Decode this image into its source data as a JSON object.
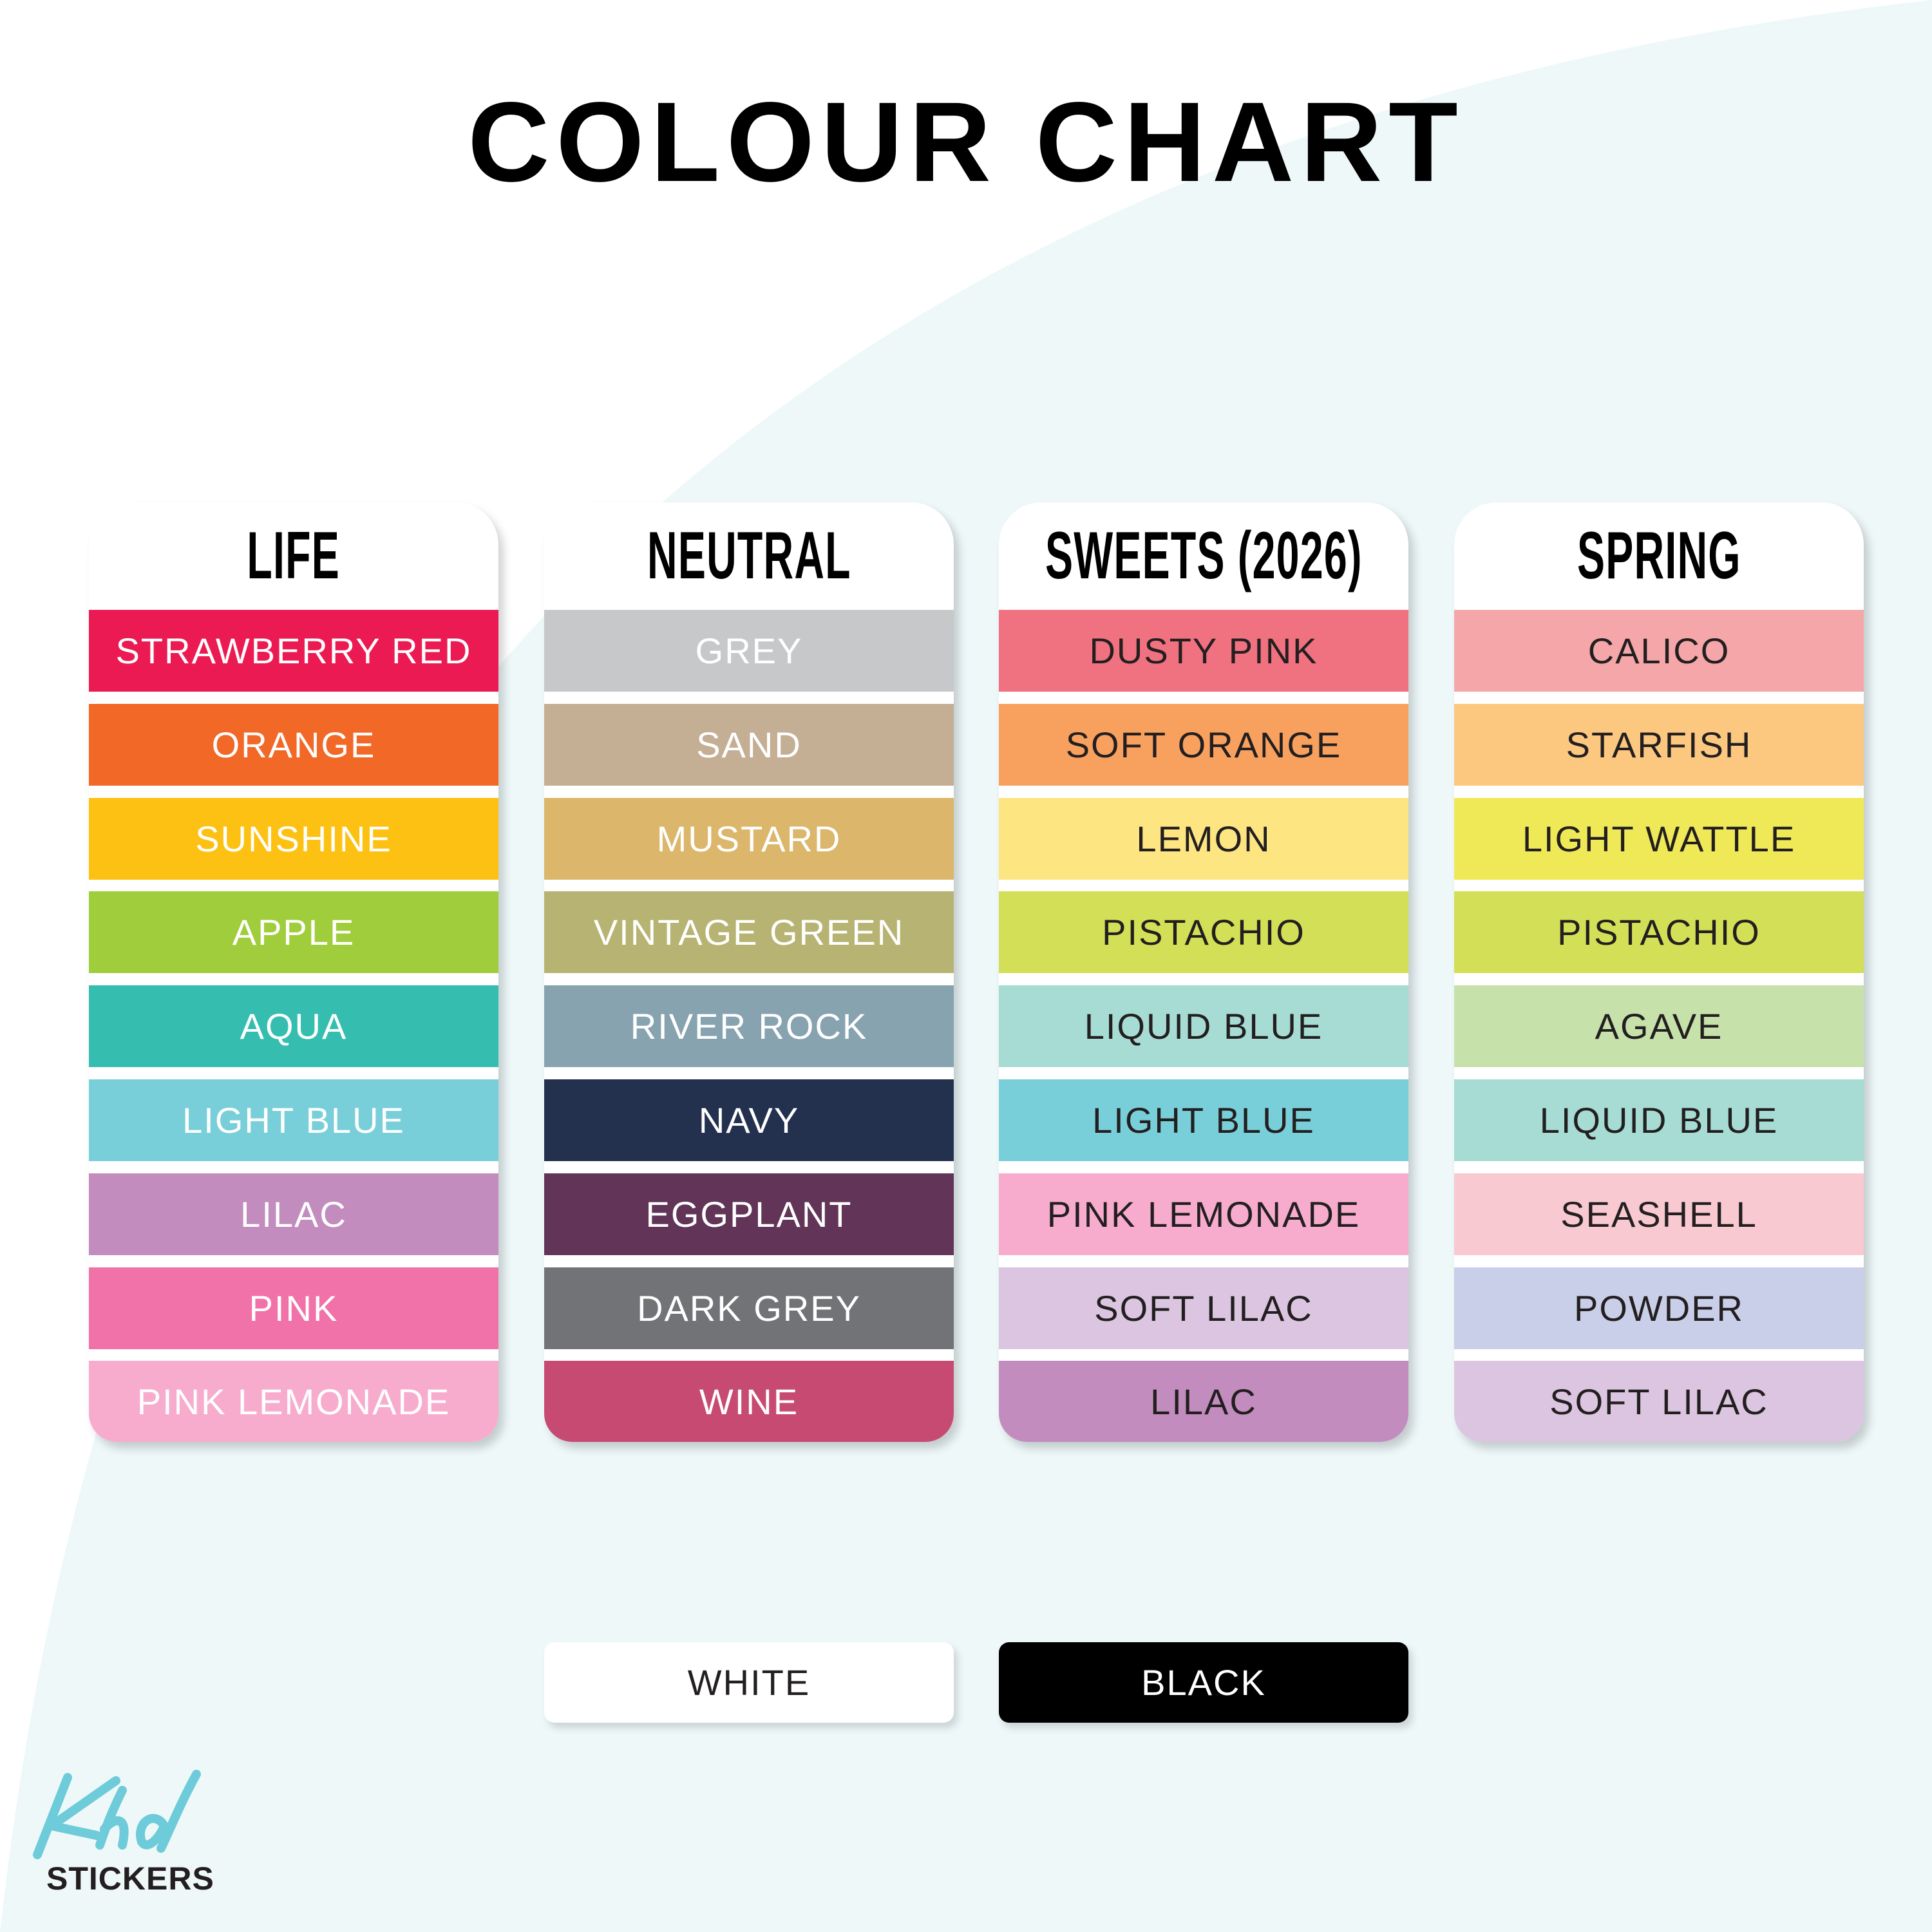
{
  "title": "COLOUR CHART",
  "colors": {
    "background": "#ffffff",
    "background_curve": "#eef8f9",
    "logo_accent": "#6ecbd9"
  },
  "columns": [
    {
      "name": "LIFE",
      "items": [
        {
          "label": "STRAWBERRY RED",
          "color": "#ec1a52",
          "text": "#ffffff"
        },
        {
          "label": "ORANGE",
          "color": "#f26826",
          "text": "#ffffff"
        },
        {
          "label": "SUNSHINE",
          "color": "#fdc113",
          "text": "#ffffff"
        },
        {
          "label": "APPLE",
          "color": "#a0cd3c",
          "text": "#ffffff"
        },
        {
          "label": "AQUA",
          "color": "#35bdb0",
          "text": "#ffffff"
        },
        {
          "label": "LIGHT BLUE",
          "color": "#79cfd9",
          "text": "#ffffff"
        },
        {
          "label": "LILAC",
          "color": "#c38cbf",
          "text": "#ffffff"
        },
        {
          "label": "PINK",
          "color": "#f172a9",
          "text": "#ffffff"
        },
        {
          "label": "PINK LEMONADE",
          "color": "#f7acce",
          "text": "#ffffff"
        }
      ]
    },
    {
      "name": "NEUTRAL",
      "items": [
        {
          "label": "GREY",
          "color": "#c7c8ca",
          "text": "#ffffff"
        },
        {
          "label": "SAND",
          "color": "#c4ae94",
          "text": "#ffffff"
        },
        {
          "label": "MUSTARD",
          "color": "#dbb66b",
          "text": "#ffffff"
        },
        {
          "label": "VINTAGE GREEN",
          "color": "#b6b373",
          "text": "#ffffff"
        },
        {
          "label": "RIVER ROCK",
          "color": "#87a3b0",
          "text": "#ffffff"
        },
        {
          "label": "NAVY",
          "color": "#23314e",
          "text": "#ffffff"
        },
        {
          "label": "EGGPLANT",
          "color": "#613458",
          "text": "#ffffff"
        },
        {
          "label": "DARK GREY",
          "color": "#727376",
          "text": "#ffffff"
        },
        {
          "label": "WINE",
          "color": "#c74a72",
          "text": "#ffffff"
        }
      ]
    },
    {
      "name": "SWEETS (2026)",
      "items": [
        {
          "label": "DUSTY PINK",
          "color": "#f0717f",
          "text": "#231f20"
        },
        {
          "label": "SOFT ORANGE",
          "color": "#f8a15f",
          "text": "#231f20"
        },
        {
          "label": "LEMON",
          "color": "#fde581",
          "text": "#231f20"
        },
        {
          "label": "PISTACHIO",
          "color": "#d3df56",
          "text": "#231f20"
        },
        {
          "label": "LIQUID BLUE",
          "color": "#a6dcd4",
          "text": "#231f20"
        },
        {
          "label": "LIGHT BLUE",
          "color": "#79cfd9",
          "text": "#231f20"
        },
        {
          "label": "PINK LEMONADE",
          "color": "#f7acce",
          "text": "#231f20"
        },
        {
          "label": "SOFT LILAC",
          "color": "#dbc5e0",
          "text": "#231f20"
        },
        {
          "label": "LILAC",
          "color": "#c38cbf",
          "text": "#231f20"
        }
      ]
    },
    {
      "name": "SPRING",
      "items": [
        {
          "label": "CALICO",
          "color": "#f5a6a8",
          "text": "#231f20"
        },
        {
          "label": "STARFISH",
          "color": "#fcc880",
          "text": "#231f20"
        },
        {
          "label": "LIGHT WATTLE",
          "color": "#f0e957",
          "text": "#231f20"
        },
        {
          "label": "PISTACHIO",
          "color": "#d3df56",
          "text": "#231f20"
        },
        {
          "label": "AGAVE",
          "color": "#c6e2aa",
          "text": "#231f20"
        },
        {
          "label": "LIQUID BLUE",
          "color": "#a6dcd4",
          "text": "#231f20"
        },
        {
          "label": "SEASHELL",
          "color": "#f9c9d2",
          "text": "#231f20"
        },
        {
          "label": "POWDER",
          "color": "#c9cfe9",
          "text": "#231f20"
        },
        {
          "label": "SOFT LILAC",
          "color": "#dbc5e0",
          "text": "#231f20"
        }
      ]
    }
  ],
  "extras": [
    {
      "label": "WHITE",
      "color": "#ffffff",
      "text": "#231f20"
    },
    {
      "label": "BLACK",
      "color": "#000000",
      "text": "#ffffff"
    }
  ],
  "logo": {
    "script": "Khd",
    "text": "STICKERS"
  }
}
